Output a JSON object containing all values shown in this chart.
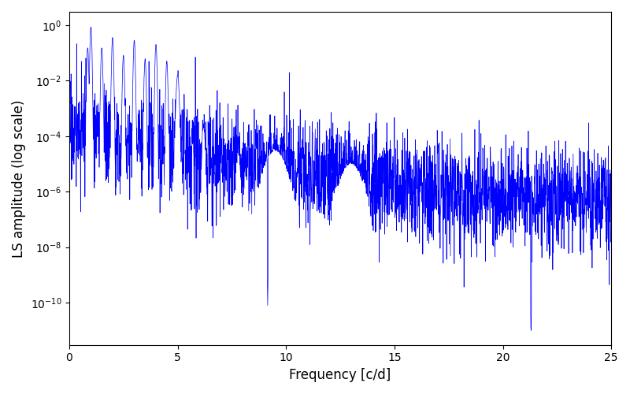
{
  "xlabel": "Frequency [c/d]",
  "ylabel": "LS amplitude (log scale)",
  "xlim": [
    0,
    25
  ],
  "line_color": "#0000ff",
  "line_width": 0.5,
  "background_color": "#ffffff",
  "figsize": [
    8.0,
    5.0
  ],
  "dpi": 100,
  "seed": 17,
  "n_points": 3000,
  "freq_max": 25.0,
  "yticks": [
    1e-10,
    1e-08,
    1e-06,
    0.0001,
    0.01,
    1.0
  ],
  "xticks": [
    0,
    5,
    10,
    15,
    20,
    25
  ],
  "ylim": [
    3e-12,
    3.0
  ]
}
